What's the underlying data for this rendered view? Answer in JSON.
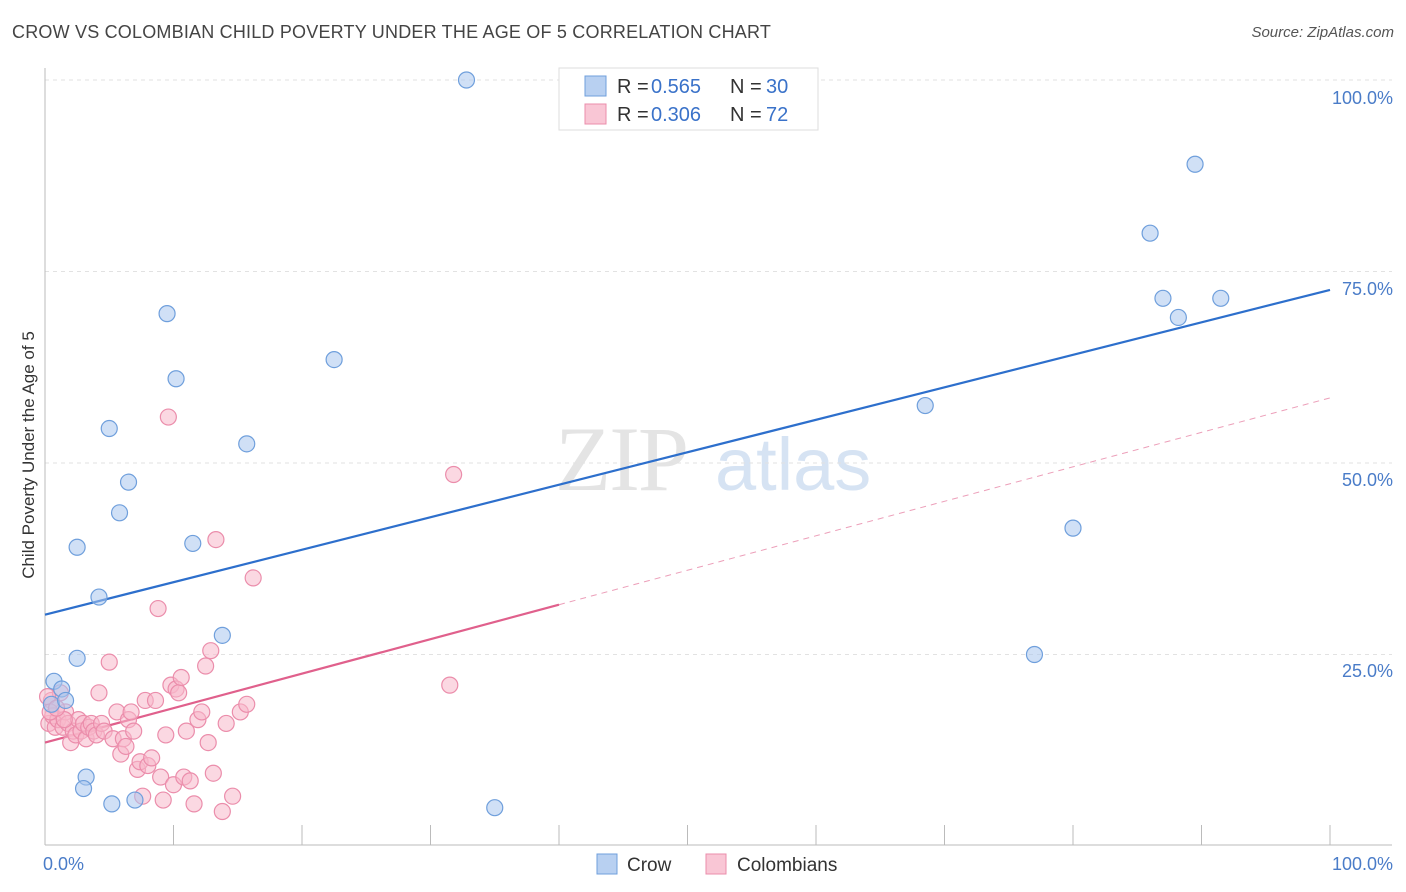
{
  "title": "CROW VS COLOMBIAN CHILD POVERTY UNDER THE AGE OF 5 CORRELATION CHART",
  "source": "Source: ZipAtlas.com",
  "watermark": {
    "zip": "ZIP",
    "atlas": "atlas"
  },
  "chart_data": {
    "type": "scatter",
    "xlabel": "",
    "ylabel": "Child Poverty Under the Age of 5",
    "xlim": [
      0,
      100
    ],
    "ylim": [
      0,
      100
    ],
    "x_tick_labels": {
      "min": "0.0%",
      "max": "100.0%"
    },
    "y_tick_labels": [
      "25.0%",
      "50.0%",
      "75.0%",
      "100.0%"
    ],
    "y_tick_values": [
      25,
      50,
      75,
      100
    ],
    "legend": {
      "entries": [
        {
          "r_label": "R =",
          "r_value": "0.565",
          "n_label": "N =",
          "n_value": "30"
        },
        {
          "r_label": "R =",
          "r_value": "0.306",
          "n_label": "N =",
          "n_value": "72"
        }
      ]
    },
    "series": [
      {
        "name": "Crow",
        "color": "#a9c6ee",
        "stroke": "#6f9fdc",
        "line_color": "#2d6fcc",
        "trend": {
          "x0": 0,
          "y0": 30.2,
          "x1": 100,
          "y1": 72.6,
          "solid_until": 100
        },
        "points": [
          [
            0.5,
            18.5
          ],
          [
            0.7,
            21.5
          ],
          [
            1.3,
            20.5
          ],
          [
            1.6,
            19.0
          ],
          [
            2.5,
            39.0
          ],
          [
            2.5,
            24.5
          ],
          [
            3.2,
            9.0
          ],
          [
            3.0,
            7.5
          ],
          [
            4.2,
            32.5
          ],
          [
            5.2,
            5.5
          ],
          [
            5.8,
            43.5
          ],
          [
            6.5,
            47.5
          ],
          [
            5.0,
            54.5
          ],
          [
            7.0,
            6.0
          ],
          [
            9.5,
            69.5
          ],
          [
            10.2,
            61.0
          ],
          [
            11.5,
            39.5
          ],
          [
            13.8,
            27.5
          ],
          [
            15.7,
            52.5
          ],
          [
            22.5,
            63.5
          ],
          [
            32.8,
            100.0
          ],
          [
            35.0,
            5.0
          ],
          [
            68.5,
            57.5
          ],
          [
            77.0,
            25.0
          ],
          [
            80.0,
            41.5
          ],
          [
            86.0,
            80.0
          ],
          [
            87.0,
            71.5
          ],
          [
            88.2,
            69.0
          ],
          [
            89.5,
            89.0
          ],
          [
            91.5,
            71.5
          ]
        ]
      },
      {
        "name": "Colombians",
        "color": "#f7b8cb",
        "stroke": "#eb8dab",
        "line_color": "#e0608c",
        "trend": {
          "x0": 0,
          "y0": 13.5,
          "x1": 100,
          "y1": 58.5,
          "solid_until": 40
        },
        "points": [
          [
            0.3,
            16.0
          ],
          [
            0.5,
            19.0
          ],
          [
            0.6,
            17.0
          ],
          [
            0.8,
            15.5
          ],
          [
            1.0,
            16.5
          ],
          [
            1.2,
            20.0
          ],
          [
            1.4,
            15.5
          ],
          [
            1.6,
            17.5
          ],
          [
            1.8,
            16.0
          ],
          [
            2.0,
            13.5
          ],
          [
            2.2,
            15.0
          ],
          [
            2.4,
            14.5
          ],
          [
            2.6,
            16.5
          ],
          [
            2.8,
            15.0
          ],
          [
            3.0,
            16.0
          ],
          [
            3.2,
            14.0
          ],
          [
            3.4,
            15.5
          ],
          [
            3.6,
            16.0
          ],
          [
            3.8,
            15.0
          ],
          [
            4.0,
            14.5
          ],
          [
            4.2,
            20.0
          ],
          [
            4.4,
            16.0
          ],
          [
            4.6,
            15.0
          ],
          [
            5.0,
            24.0
          ],
          [
            5.3,
            14.0
          ],
          [
            5.6,
            17.5
          ],
          [
            5.9,
            12.0
          ],
          [
            6.1,
            14.0
          ],
          [
            6.3,
            13.0
          ],
          [
            6.5,
            16.5
          ],
          [
            6.7,
            17.5
          ],
          [
            6.9,
            15.0
          ],
          [
            7.2,
            10.0
          ],
          [
            7.4,
            11.0
          ],
          [
            7.6,
            6.5
          ],
          [
            7.8,
            19.0
          ],
          [
            8.0,
            10.5
          ],
          [
            8.3,
            11.5
          ],
          [
            8.6,
            19.0
          ],
          [
            8.8,
            31.0
          ],
          [
            9.0,
            9.0
          ],
          [
            9.2,
            6.0
          ],
          [
            9.4,
            14.5
          ],
          [
            9.6,
            56.0
          ],
          [
            9.8,
            21.0
          ],
          [
            10.0,
            8.0
          ],
          [
            10.2,
            20.5
          ],
          [
            10.4,
            20.0
          ],
          [
            10.6,
            22.0
          ],
          [
            10.8,
            9.0
          ],
          [
            11.0,
            15.0
          ],
          [
            11.3,
            8.5
          ],
          [
            11.6,
            5.5
          ],
          [
            11.9,
            16.5
          ],
          [
            12.2,
            17.5
          ],
          [
            12.5,
            23.5
          ],
          [
            12.7,
            13.5
          ],
          [
            12.9,
            25.5
          ],
          [
            13.1,
            9.5
          ],
          [
            13.3,
            40.0
          ],
          [
            13.8,
            4.5
          ],
          [
            14.1,
            16.0
          ],
          [
            14.6,
            6.5
          ],
          [
            15.2,
            17.5
          ],
          [
            15.7,
            18.5
          ],
          [
            16.2,
            35.0
          ],
          [
            31.5,
            21.0
          ],
          [
            31.8,
            48.5
          ],
          [
            0.2,
            19.5
          ],
          [
            0.4,
            17.5
          ],
          [
            1.5,
            16.5
          ],
          [
            0.9,
            18.0
          ]
        ]
      }
    ]
  }
}
